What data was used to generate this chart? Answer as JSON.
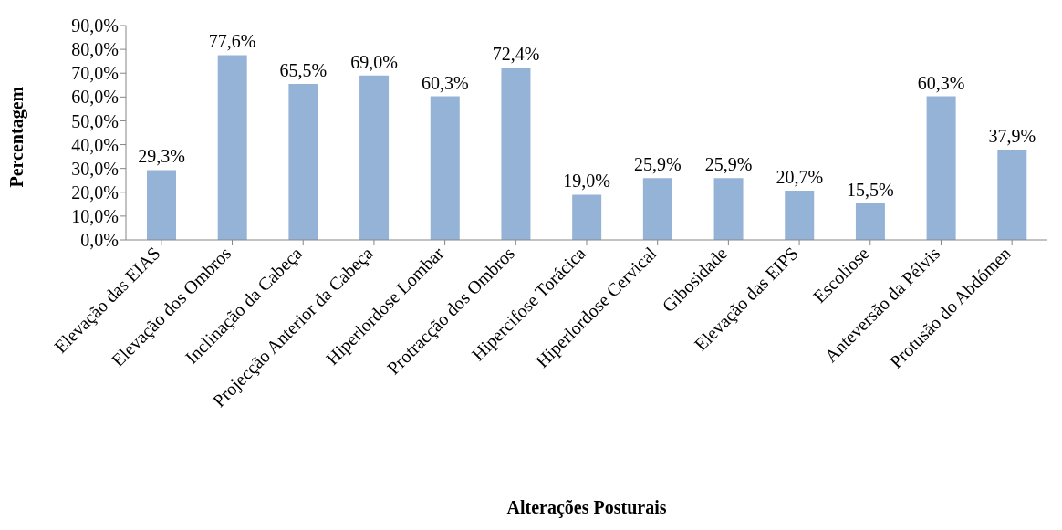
{
  "chart_data": {
    "type": "bar",
    "xlabel": "Alterações Posturais",
    "ylabel": "Percentagem",
    "categories": [
      "Elevação das EIAS",
      "Elevação dos Ombros",
      "Inclinação da Cabeça",
      "Projecção Anterior da Cabeça",
      "Hiperlordose Lombar",
      "Protracção dos Ombros",
      "Hipercifose Torácica",
      "Hiperlordose Cervical",
      "Gibosidade",
      "Elevação das EIPS",
      "Escoliose",
      "Anteversão da Pélvis",
      "Protusão do Abdómen"
    ],
    "values": [
      29.3,
      77.6,
      65.5,
      69.0,
      60.3,
      72.4,
      19.0,
      25.9,
      25.9,
      20.7,
      15.5,
      60.3,
      37.9
    ],
    "value_labels": [
      "29,3%",
      "77,6%",
      "65,5%",
      "69,0%",
      "60,3%",
      "72,4%",
      "19,0%",
      "25,9%",
      "25,9%",
      "20,7%",
      "15,5%",
      "60,3%",
      "37,9%"
    ],
    "color": "#95b3d7",
    "ylim": [
      0,
      90
    ],
    "yticks": [
      {
        "value": 0,
        "label": "0,0%"
      },
      {
        "value": 10,
        "label": "10,0%"
      },
      {
        "value": 20,
        "label": "20,0%"
      },
      {
        "value": 30,
        "label": "30,0%"
      },
      {
        "value": 40,
        "label": "40,0%"
      },
      {
        "value": 50,
        "label": "50,0%"
      },
      {
        "value": 60,
        "label": "60,0%"
      },
      {
        "value": 70,
        "label": "70,0%"
      },
      {
        "value": 80,
        "label": "80,0%"
      },
      {
        "value": 90,
        "label": "90,0%"
      }
    ],
    "grid": false,
    "legend": false
  }
}
